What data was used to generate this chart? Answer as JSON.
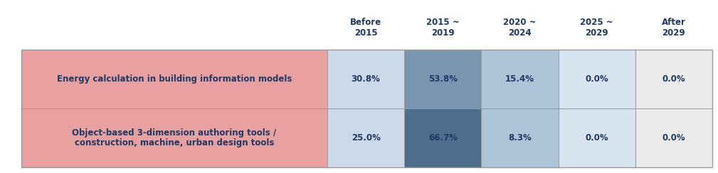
{
  "headers": [
    "Before\n2015",
    "2015 ~\n2019",
    "2020 ~\n2024",
    "2025 ~\n2029",
    "After\n2029"
  ],
  "rows": [
    {
      "label_lines": [
        "Energy calculation in building information models"
      ],
      "values": [
        "30.8%",
        "53.8%",
        "15.4%",
        "0.0%",
        "0.0%"
      ],
      "cell_colors": [
        "#ccd9e8",
        "#7b95b0",
        "#aec4d8",
        "#d8e4ef",
        "#ebebeb"
      ]
    },
    {
      "label_lines": [
        "Object-based 3-dimension authoring tools /",
        "construction, machine, urban design tools"
      ],
      "values": [
        "25.0%",
        "66.7%",
        "8.3%",
        "0.0%",
        "0.0%"
      ],
      "cell_colors": [
        "#ccd9e8",
        "#4e6e8e",
        "#aec4d8",
        "#d8e4ef",
        "#ebebeb"
      ]
    }
  ],
  "label_bg_color": "#e8a0a0",
  "header_color": "#1f3864",
  "text_color": "#1f3864",
  "border_color": "#999999",
  "background_color": "#ffffff",
  "fig_width": 10.09,
  "fig_height": 2.44,
  "header_fontsize": 8.5,
  "cell_fontsize": 8.5,
  "label_fontsize": 8.5
}
